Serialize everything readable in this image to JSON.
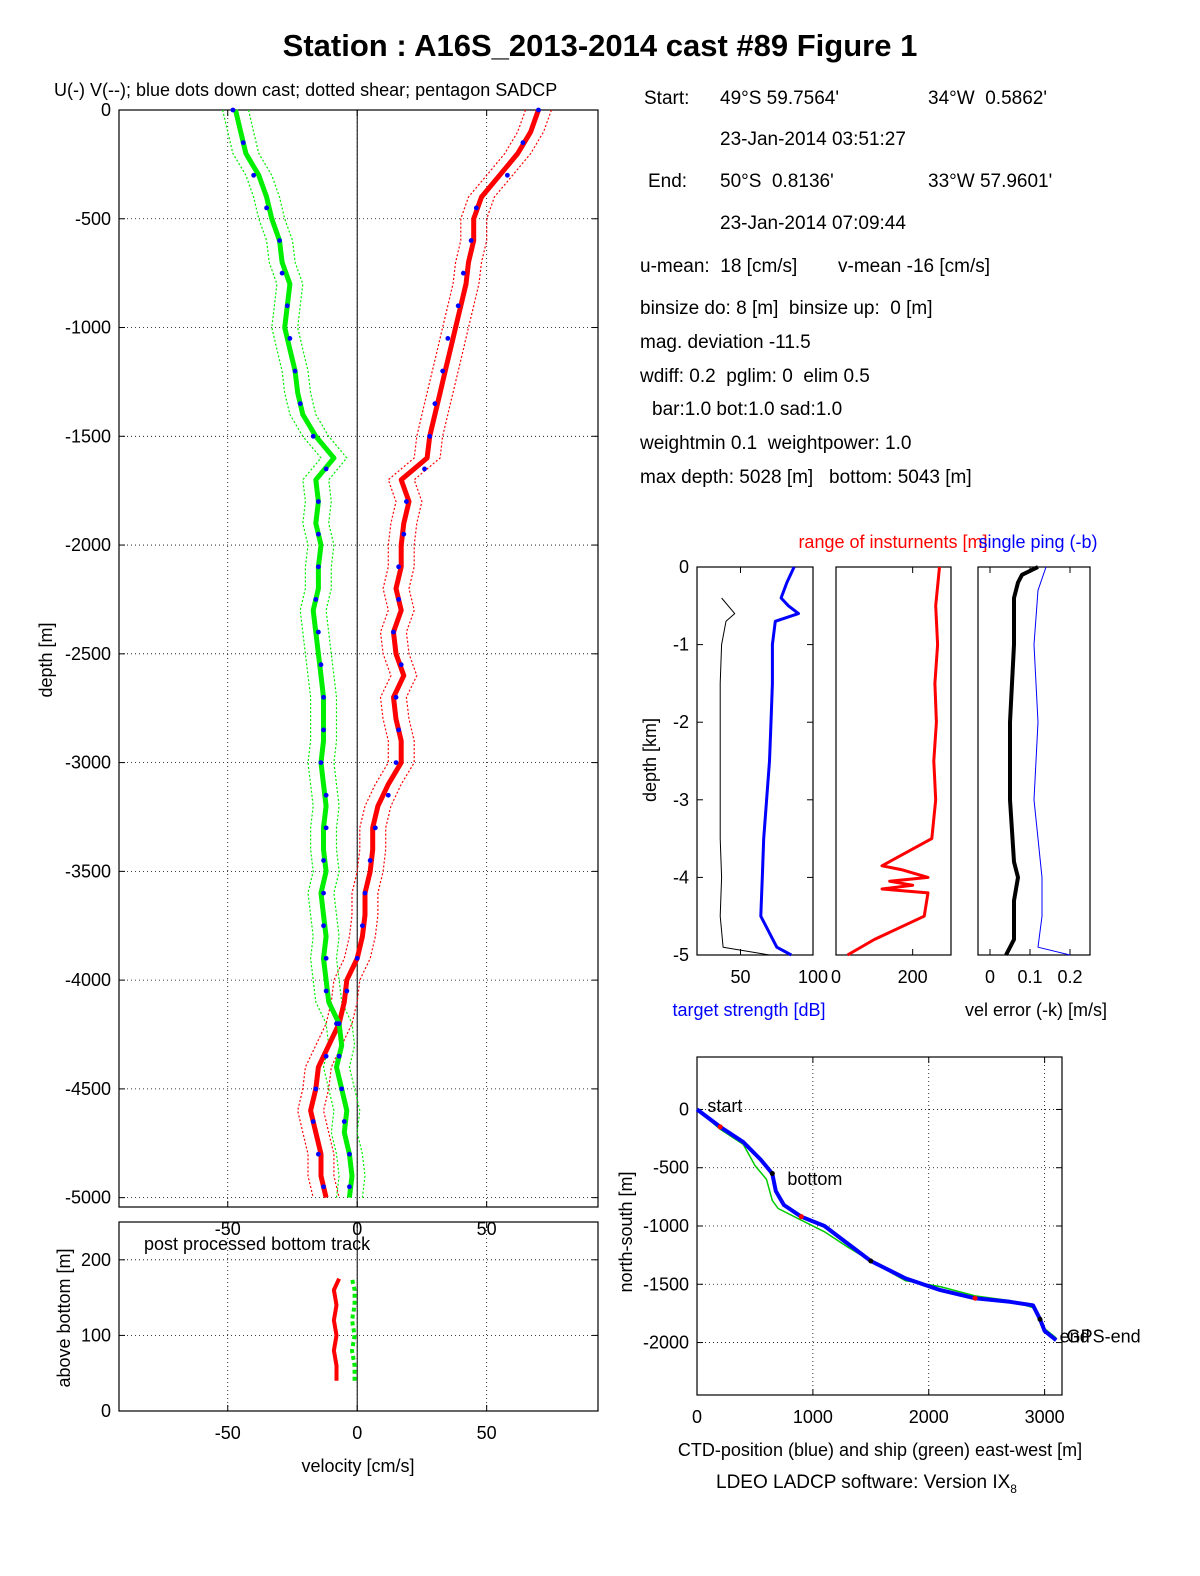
{
  "title": "Station : A16S_2013-2014 cast #89  Figure 1",
  "footer": "LDEO LADCP software: Version IX",
  "footer_sub": "8",
  "info": {
    "start_label": "Start:",
    "start_lat": "49°S 59.7564'",
    "start_lon": "34°W  0.5862'",
    "start_time": "23-Jan-2014 03:51:27",
    "end_label": "End:",
    "end_lat": "50°S  0.8136'",
    "end_lon": "33°W 57.9601'",
    "end_time": "23-Jan-2014 07:09:44",
    "u_mean": "u-mean:  18 [cm/s]",
    "v_mean": "v-mean -16 [cm/s]",
    "binsize": "binsize do: 8 [m]  binsize up:  0 [m]",
    "mag_dev": "mag. deviation -11.5",
    "wdiff": "wdiff: 0.2  pglim: 0  elim 0.5",
    "bar": "bar:1.0 bot:1.0 sad:1.0",
    "weight": "weightmin 0.1  weightpower: 1.0",
    "depth": "max depth: 5028 [m]   bottom: 5043 [m]"
  },
  "colors": {
    "u": "#ff0000",
    "v": "#00ee00",
    "sadcp": "#0000ff",
    "ctd": "#0000ff",
    "black": "#000000"
  },
  "chart_data": [
    {
      "id": "velocity_profile",
      "type": "line",
      "title": "U(-) V(--); blue dots down cast; dotted shear; pentagon SADCP",
      "xlabel": "",
      "ylabel": "depth [m]",
      "xlim": [
        -92,
        93
      ],
      "ylim": [
        -5043,
        0
      ],
      "xticks": [
        -50,
        0,
        50
      ],
      "yticks": [
        0,
        -500,
        -1000,
        -1500,
        -2000,
        -2500,
        -3000,
        -3500,
        -4000,
        -4500,
        -5000
      ],
      "ytick_labels": [
        "0",
        "-500",
        "-1000",
        "-1500",
        "-2000",
        "-2500",
        "-3000",
        "-3500",
        "-4000",
        "-4500",
        "-5000"
      ],
      "grid": true,
      "series": [
        {
          "key": "u",
          "color": "#ff0000",
          "y": [
            0,
            -100,
            -200,
            -300,
            -400,
            -500,
            -600,
            -700,
            -800,
            -900,
            -1000,
            -1100,
            -1200,
            -1300,
            -1400,
            -1500,
            -1600,
            -1700,
            -1800,
            -1900,
            -2000,
            -2100,
            -2200,
            -2300,
            -2400,
            -2500,
            -2600,
            -2700,
            -2800,
            -2900,
            -3000,
            -3100,
            -3200,
            -3300,
            -3400,
            -3500,
            -3600,
            -3700,
            -3800,
            -3900,
            -4000,
            -4100,
            -4200,
            -4300,
            -4400,
            -4500,
            -4600,
            -4700,
            -4800,
            -4900,
            -5000
          ],
          "x": [
            70,
            67,
            62,
            55,
            48,
            45,
            45,
            43,
            42,
            40,
            38,
            36,
            34,
            32,
            30,
            28,
            27,
            17,
            20,
            18,
            17,
            17,
            15,
            17,
            14,
            15,
            18,
            14,
            15,
            17,
            17,
            12,
            8,
            6,
            6,
            5,
            3,
            3,
            2,
            0,
            -4,
            -5,
            -7,
            -11,
            -15,
            -16,
            -18,
            -16,
            -14,
            -14,
            -12
          ]
        },
        {
          "key": "v",
          "color": "#00ee00",
          "y": [
            0,
            -100,
            -200,
            -300,
            -400,
            -500,
            -600,
            -700,
            -800,
            -900,
            -1000,
            -1100,
            -1200,
            -1300,
            -1400,
            -1500,
            -1600,
            -1700,
            -1800,
            -1900,
            -2000,
            -2100,
            -2200,
            -2300,
            -2400,
            -2500,
            -2600,
            -2700,
            -2800,
            -2900,
            -3000,
            -3100,
            -3200,
            -3300,
            -3400,
            -3500,
            -3600,
            -3700,
            -3800,
            -3900,
            -4000,
            -4100,
            -4200,
            -4300,
            -4400,
            -4500,
            -4600,
            -4700,
            -4800,
            -4900,
            -5000
          ],
          "x": [
            -47,
            -45,
            -43,
            -38,
            -35,
            -33,
            -30,
            -29,
            -26,
            -27,
            -28,
            -26,
            -24,
            -23,
            -21,
            -16,
            -9,
            -16,
            -15,
            -16,
            -14,
            -15,
            -15,
            -17,
            -16,
            -15,
            -14,
            -13,
            -13,
            -13,
            -14,
            -13,
            -12,
            -13,
            -13,
            -12,
            -14,
            -13,
            -12,
            -13,
            -12,
            -11,
            -7,
            -6,
            -8,
            -6,
            -4,
            -5,
            -3,
            -2,
            -3
          ]
        },
        {
          "key": "sadcp",
          "color": "#0000ff",
          "y": [
            0,
            -150,
            -300,
            -450,
            -600,
            -750,
            -900,
            -1050,
            -1200,
            -1350,
            -1500,
            -1650,
            -1800,
            -1950,
            -2100,
            -2250,
            -2400,
            -2550,
            -2700,
            -2850,
            -3000,
            -3150,
            -3300,
            -3450,
            -3600,
            -3750,
            -3900,
            -4050,
            -4200,
            -4350,
            -4500,
            -4650,
            -4800,
            -4950
          ],
          "x": [
            70,
            64,
            58,
            46,
            44,
            41,
            39,
            35,
            33,
            30,
            28,
            26,
            19,
            18,
            16,
            16,
            14,
            17,
            15,
            16,
            15,
            12,
            7,
            5,
            3,
            2,
            0,
            -4,
            -7,
            -12,
            -16,
            -17,
            -15,
            -13
          ]
        },
        {
          "key": "sadcp_v",
          "color": "#0000ff",
          "y": [
            0,
            -150,
            -300,
            -450,
            -600,
            -750,
            -900,
            -1050,
            -1200,
            -1350,
            -1500,
            -1650,
            -1800,
            -1950,
            -2100,
            -2250,
            -2400,
            -2550,
            -2700,
            -2850,
            -3000,
            -3150,
            -3300,
            -3450,
            -3600,
            -3750,
            -3900,
            -4050,
            -4200,
            -4350,
            -4500,
            -4650,
            -4800,
            -4950
          ],
          "x": [
            -48,
            -44,
            -40,
            -35,
            -30,
            -29,
            -27,
            -26,
            -24,
            -22,
            -17,
            -12,
            -15,
            -15,
            -15,
            -16,
            -15,
            -14,
            -13,
            -13,
            -14,
            -12,
            -12,
            -13,
            -13,
            -13,
            -12,
            -12,
            -8,
            -7,
            -6,
            -5,
            -3,
            -3
          ]
        }
      ]
    },
    {
      "id": "bottom_track",
      "type": "line",
      "title": "post processed bottom track",
      "xlabel": "velocity [cm/s]",
      "ylabel": "above bottom [m]",
      "xlim": [
        -92,
        93
      ],
      "ylim": [
        0,
        250
      ],
      "xticks": [
        -50,
        0,
        50
      ],
      "yticks": [
        0,
        100,
        200
      ],
      "grid": true,
      "series": [
        {
          "key": "u",
          "color": "#ff0000",
          "y": [
            40,
            60,
            80,
            100,
            120,
            140,
            160,
            175
          ],
          "x": [
            -8,
            -8,
            -9,
            -8,
            -9,
            -8,
            -9,
            -7
          ]
        },
        {
          "key": "v",
          "color": "#00ee00",
          "y": [
            40,
            60,
            80,
            100,
            120,
            140,
            160,
            175
          ],
          "x": [
            -1,
            -1,
            -2,
            -1,
            -2,
            -1,
            -1,
            -2
          ]
        }
      ]
    },
    {
      "id": "target_strength",
      "type": "line",
      "title": "",
      "xlabel": "target strength [dB]",
      "ylabel": "depth [km]",
      "xlim": [
        20,
        100
      ],
      "ylim": [
        -5,
        0
      ],
      "xticks": [
        50,
        100
      ],
      "xtick_labels": [
        "50",
        "100"
      ],
      "yticks": [
        0,
        -1,
        -2,
        -3,
        -4,
        -5
      ],
      "series": [
        {
          "key": "ts_blue",
          "color": "#0000ff",
          "y": [
            0,
            -0.2,
            -0.4,
            -0.5,
            -0.6,
            -0.7,
            -1.0,
            -1.5,
            -2.0,
            -2.5,
            -3.0,
            -3.5,
            -4.0,
            -4.5,
            -4.9,
            -5.0
          ],
          "x": [
            87,
            82,
            78,
            83,
            90,
            74,
            72,
            72,
            71,
            70,
            68,
            66,
            65,
            64,
            75,
            85
          ]
        },
        {
          "key": "ts_black",
          "color": "#000000",
          "y": [
            -0.4,
            -0.6,
            -0.7,
            -1.0,
            -1.5,
            -2.0,
            -2.5,
            -3.0,
            -3.5,
            -4.0,
            -4.5,
            -4.9,
            -5.0
          ],
          "x": [
            37,
            46,
            40,
            37,
            36,
            36,
            36,
            36,
            36,
            37,
            36,
            38,
            70
          ]
        }
      ]
    },
    {
      "id": "range",
      "type": "line",
      "title": "range of insturnents [m]",
      "xlabel": "",
      "ylabel": "",
      "xlim": [
        0,
        300
      ],
      "ylim": [
        -5,
        0
      ],
      "xticks": [
        0,
        200
      ],
      "xtick_labels": [
        "0",
        "200"
      ],
      "series": [
        {
          "key": "range",
          "color": "#ff0000",
          "y": [
            0,
            -0.5,
            -1.0,
            -1.5,
            -2.0,
            -2.5,
            -3.0,
            -3.5,
            -3.85,
            -3.9,
            -4.0,
            -4.05,
            -4.1,
            -4.15,
            -4.2,
            -4.5,
            -4.8,
            -5.0
          ],
          "x": [
            270,
            260,
            265,
            258,
            262,
            255,
            260,
            250,
            120,
            170,
            240,
            140,
            200,
            120,
            240,
            230,
            100,
            30
          ]
        }
      ]
    },
    {
      "id": "vel_error",
      "type": "line",
      "title": "single ping (-b)",
      "xlabel": "vel error (-k) [m/s]",
      "ylabel": "",
      "xlim": [
        -0.03,
        0.25
      ],
      "ylim": [
        -5,
        0
      ],
      "xticks": [
        0,
        0.1,
        0.2
      ],
      "xtick_labels": [
        "0",
        "0.1",
        "0.2"
      ],
      "series": [
        {
          "key": "err_black",
          "color": "#000000",
          "y": [
            0,
            -0.1,
            -0.2,
            -0.4,
            -1.0,
            -2.0,
            -3.0,
            -3.8,
            -4.0,
            -4.3,
            -4.8,
            -5.0
          ],
          "x": [
            0.12,
            0.08,
            0.07,
            0.06,
            0.06,
            0.05,
            0.05,
            0.06,
            0.07,
            0.06,
            0.06,
            0.04
          ]
        },
        {
          "key": "err_blue",
          "color": "#0000ff",
          "y": [
            0,
            -0.3,
            -1.0,
            -2.0,
            -3.0,
            -3.5,
            -4.0,
            -4.5,
            -4.9,
            -5.0
          ],
          "x": [
            0.14,
            0.12,
            0.11,
            0.12,
            0.11,
            0.12,
            0.13,
            0.13,
            0.12,
            0.2
          ]
        }
      ]
    },
    {
      "id": "track",
      "type": "line",
      "title": "",
      "xlabel": "CTD-position (blue) and ship (green) east-west [m]",
      "ylabel": "north-south [m]",
      "xlim": [
        0,
        3150
      ],
      "ylim": [
        -2450,
        450
      ],
      "xticks": [
        0,
        1000,
        2000,
        3000
      ],
      "yticks": [
        0,
        -500,
        -1000,
        -1500,
        -2000
      ],
      "grid": true,
      "annotations": [
        "start",
        "bottom",
        "end",
        "GPS-end"
      ],
      "series": [
        {
          "key": "ctd",
          "color": "#0000ff",
          "x": [
            0,
            200,
            400,
            550,
            650,
            680,
            750,
            900,
            1100,
            1300,
            1500,
            1800,
            2100,
            2400,
            2700,
            2900,
            2960,
            3000,
            3100
          ],
          "y": [
            0,
            -150,
            -280,
            -430,
            -550,
            -700,
            -820,
            -920,
            -1000,
            -1150,
            -1300,
            -1450,
            -1550,
            -1620,
            -1650,
            -1680,
            -1800,
            -1900,
            -1980
          ]
        },
        {
          "key": "ship",
          "color": "#00cc00",
          "x": [
            0,
            200,
            400,
            500,
            600,
            650,
            700,
            900,
            1100,
            1300,
            1500,
            1800,
            2100,
            2400,
            2700,
            2900,
            3000,
            3100
          ],
          "y": [
            0,
            -170,
            -300,
            -480,
            -600,
            -780,
            -850,
            -950,
            -1050,
            -1180,
            -1300,
            -1470,
            -1520,
            -1600,
            -1640,
            -1700,
            -1880,
            -1960
          ]
        }
      ]
    }
  ]
}
